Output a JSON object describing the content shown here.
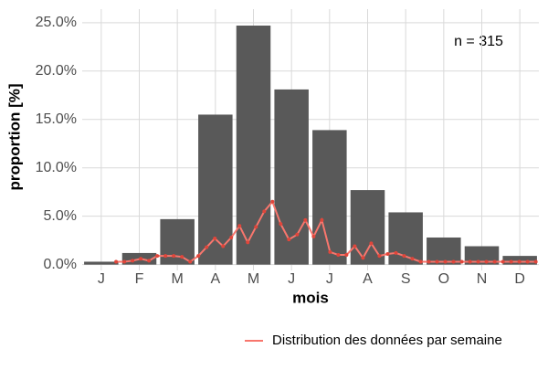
{
  "chart_data": {
    "type": "bar",
    "ylabel": "proportion [%]",
    "xlabel": "mois",
    "annotation": "n = 315",
    "categories": [
      "J",
      "F",
      "M",
      "A",
      "M",
      "J",
      "J",
      "A",
      "S",
      "O",
      "N",
      "D"
    ],
    "values": [
      0.3,
      1.2,
      4.7,
      15.5,
      24.7,
      18.1,
      13.9,
      7.7,
      5.4,
      2.8,
      1.9,
      0.9
    ],
    "color": "#595959",
    "line": {
      "name": "Distribution des données par semaine",
      "color": "#f8766d",
      "values": [
        0.3,
        0.3,
        0.4,
        0.6,
        0.4,
        0.9,
        0.9,
        0.9,
        0.8,
        0.3,
        0.9,
        1.8,
        2.7,
        1.9,
        2.8,
        4.0,
        2.3,
        3.9,
        5.5,
        6.5,
        4.2,
        2.6,
        3.1,
        4.6,
        2.9,
        4.6,
        1.3,
        1.0,
        1.0,
        1.9,
        0.7,
        2.2,
        0.9,
        1.1,
        1.2,
        0.9,
        0.6,
        0.3,
        0.3,
        0.3,
        0.3,
        0.3,
        0.3,
        0.3,
        0.3,
        0.3,
        0.3,
        0.3,
        0.3,
        0.3,
        0.3,
        0.3
      ]
    },
    "ylim": [
      -0.6,
      26.4
    ],
    "yticks": [
      {
        "value": 0,
        "label": "0.0%"
      },
      {
        "value": 5,
        "label": "5.0%"
      },
      {
        "value": 10,
        "label": "10.0%"
      },
      {
        "value": 15,
        "label": "15.0%"
      },
      {
        "value": 20,
        "label": "20.0%"
      },
      {
        "value": 25,
        "label": "25.0%"
      }
    ],
    "grid": true,
    "legend": "bottom-right"
  }
}
